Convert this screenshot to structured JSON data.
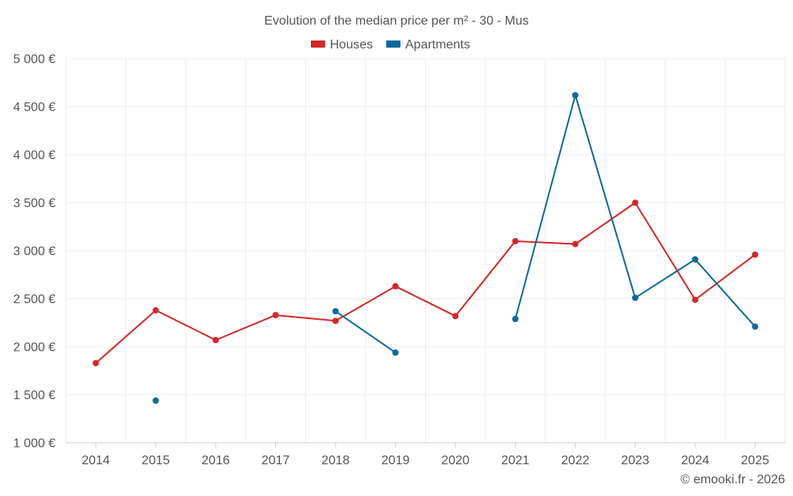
{
  "chart_data": {
    "type": "line",
    "title": "Evolution of the median price per m² - 30 - Mus",
    "categories": [
      "2014",
      "2015",
      "2016",
      "2017",
      "2018",
      "2019",
      "2020",
      "2021",
      "2022",
      "2023",
      "2024",
      "2025"
    ],
    "y_ticks": [
      "1 000 €",
      "1 500 €",
      "2 000 €",
      "2 500 €",
      "3 000 €",
      "3 500 €",
      "4 000 €",
      "4 500 €",
      "5 000 €"
    ],
    "ylim": [
      1000,
      5000
    ],
    "grid": true,
    "legend_position": "top-center",
    "series": [
      {
        "name": "Houses",
        "color": "#d62728",
        "values": [
          1830,
          2380,
          2070,
          2330,
          2270,
          2630,
          2320,
          3100,
          3070,
          3500,
          2490,
          2960
        ]
      },
      {
        "name": "Apartments",
        "color": "#0a6a9c",
        "values": [
          null,
          1440,
          null,
          null,
          2370,
          1940,
          null,
          2290,
          4620,
          2510,
          2910,
          2210
        ]
      }
    ],
    "credit": "© emooki.fr - 2026"
  }
}
